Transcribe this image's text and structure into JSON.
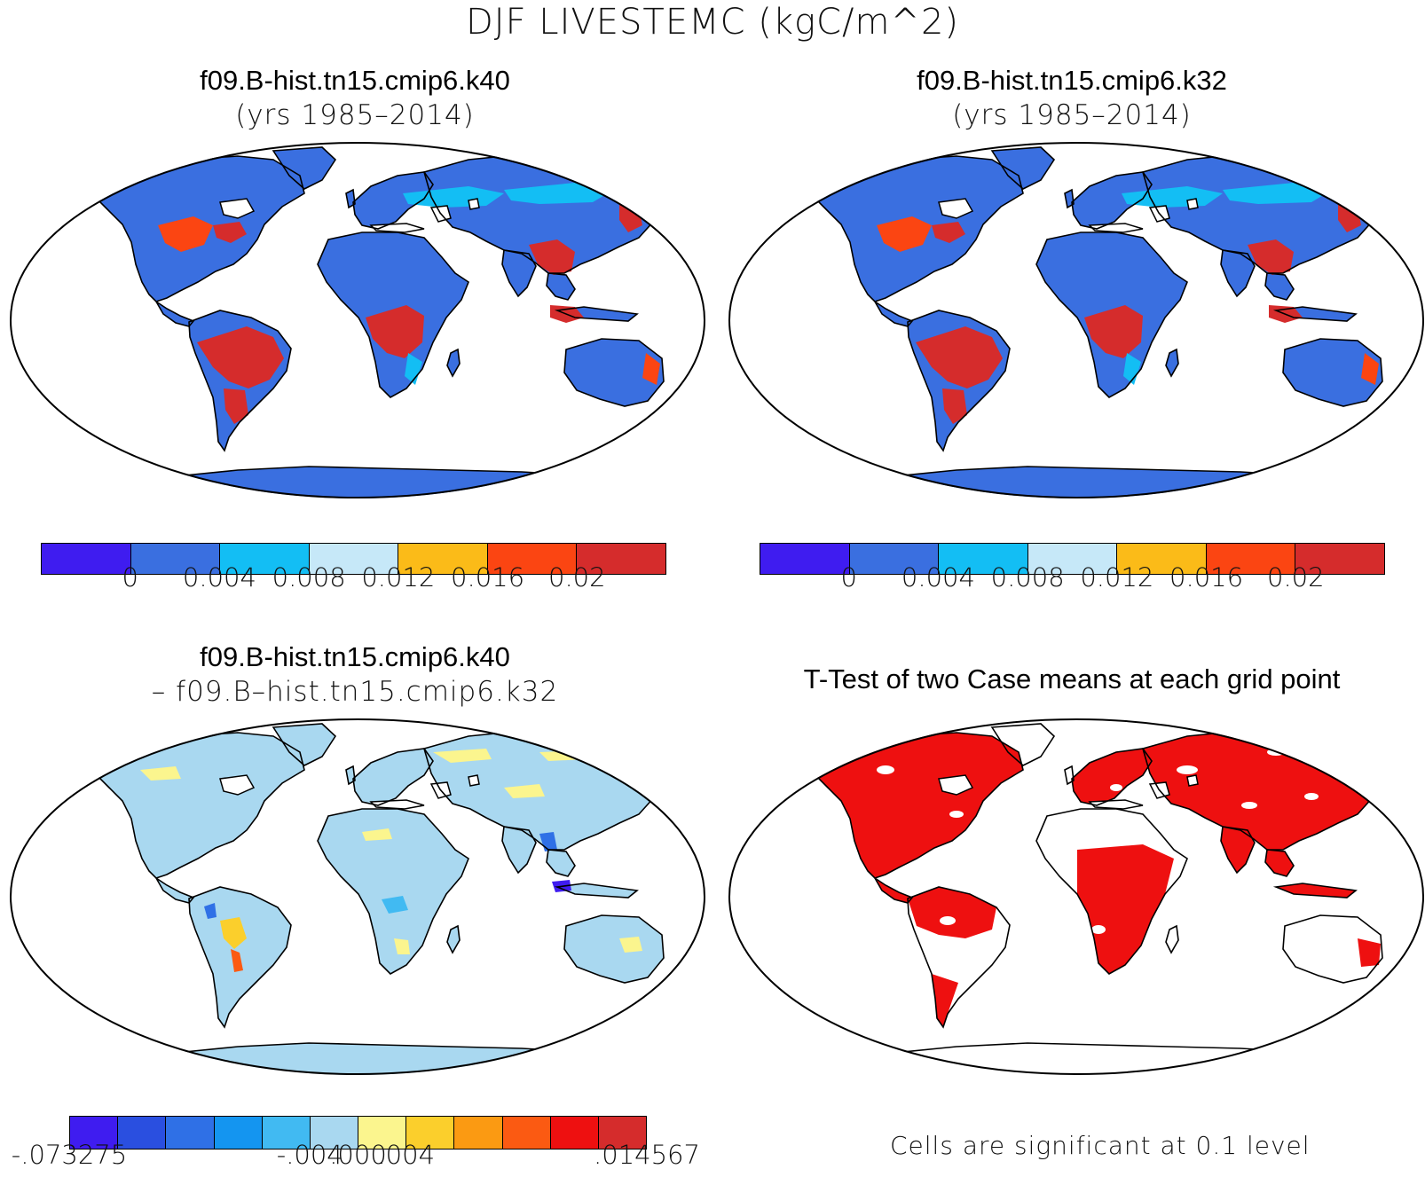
{
  "title": "DJF LIVESTEMC (kgC/m^2)",
  "panels": {
    "top_left": {
      "line1": "f09.B-hist.tn15.cmip6.k40",
      "line2": "(yrs 1985–2014)"
    },
    "top_right": {
      "line1": "f09.B-hist.tn15.cmip6.k32",
      "line2": "(yrs 1985–2014)"
    },
    "bottom_left": {
      "line1": "f09.B-hist.tn15.cmip6.k40",
      "line2": "– f09.B–hist.tn15.cmip6.k32"
    },
    "bottom_right": {
      "line1": "T-Test of two Case means at each grid point"
    }
  },
  "colorbars": {
    "mean": {
      "colors": [
        "#3f1cf0",
        "#3a6fe0",
        "#13bef4",
        "#c6e8f8",
        "#fbbb18",
        "#fb4512",
        "#d52c2c"
      ],
      "labels": [
        "0",
        "0.004",
        "0.008",
        "0.012",
        "0.016",
        "0.02"
      ]
    },
    "diff": {
      "colors": [
        "#3f1cf0",
        "#2a4fe0",
        "#2f70e6",
        "#1495f0",
        "#41baf2",
        "#a9d8f0",
        "#fbf58e",
        "#fbcf2c",
        "#fb9a12",
        "#fb5a12",
        "#ee1010",
        "#d52c2c"
      ],
      "labels": [
        "-.073275",
        "-.004",
        ".000",
        ".004",
        ".014567"
      ]
    }
  },
  "significance_note": "Cells are significant at 0.1 level",
  "map_colors": {
    "land_mean": "#3a6fe0",
    "tropics_mean": "#d52c2c",
    "land_diff": "#a9d8f0",
    "significant": "#ee1010",
    "coast": "#000000"
  }
}
